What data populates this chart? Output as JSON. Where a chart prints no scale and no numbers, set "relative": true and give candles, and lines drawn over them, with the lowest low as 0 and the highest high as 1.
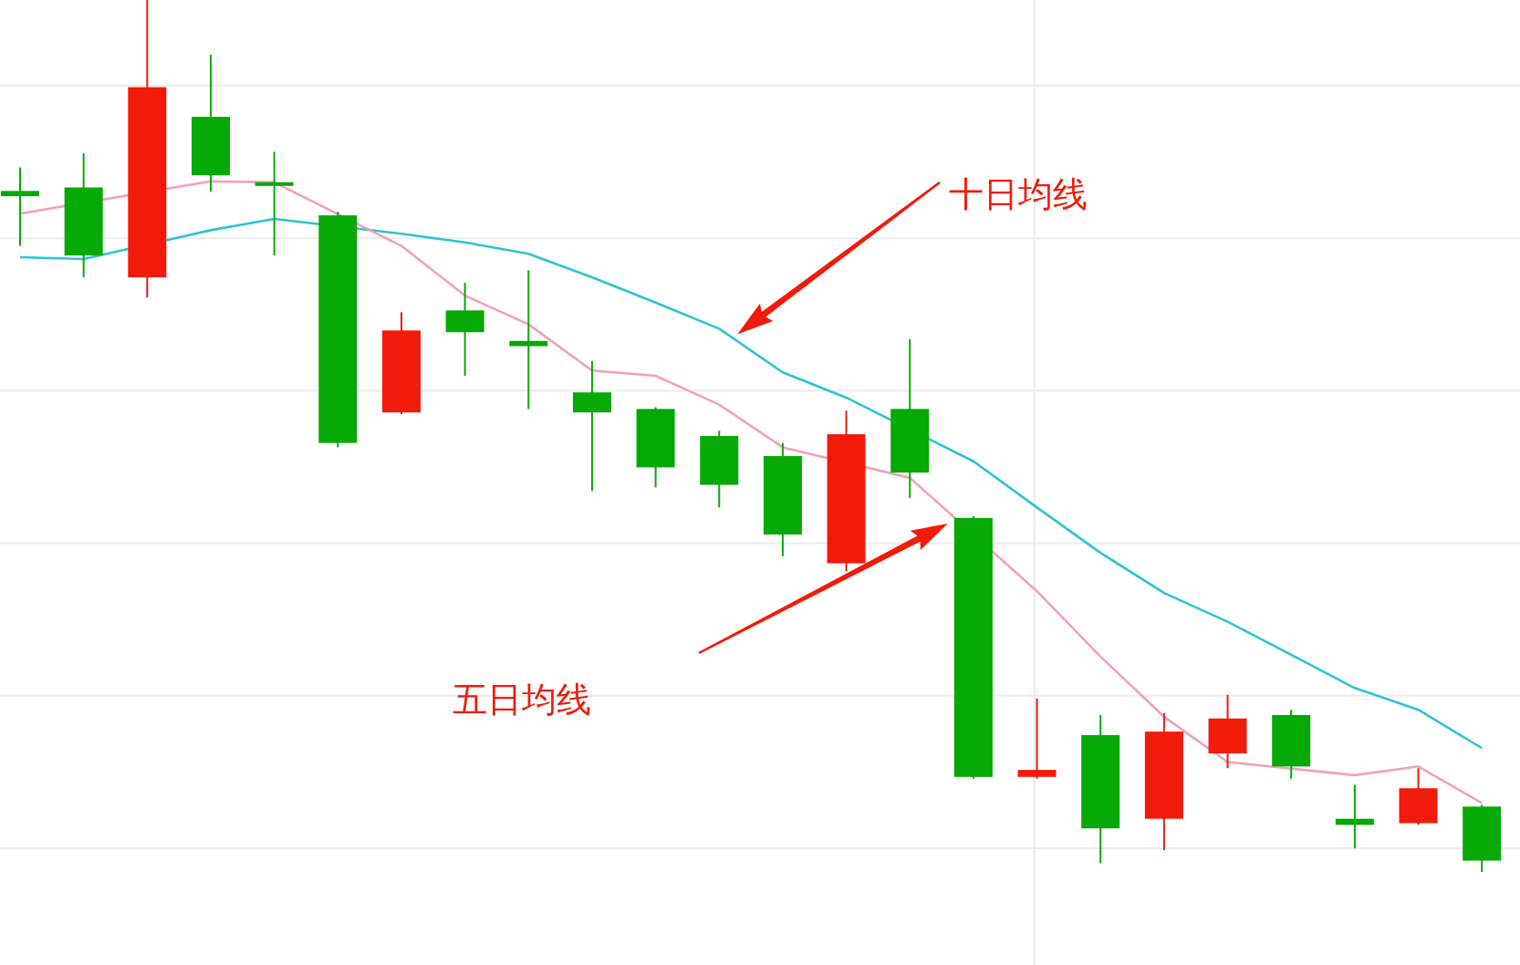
{
  "chart_data": {
    "type": "candlestick",
    "relative": true,
    "grid": true,
    "categories": [
      null,
      null,
      null,
      null,
      null,
      null,
      null,
      null,
      null,
      null,
      null,
      null,
      null,
      null,
      null,
      null,
      null,
      null,
      null,
      null,
      null,
      null,
      null,
      null
    ],
    "ohlc": [
      [
        0.781,
        0.808,
        0.718,
        0.775
      ],
      [
        0.785,
        0.824,
        0.682,
        0.707
      ],
      [
        0.682,
        1,
        0.659,
        0.9
      ],
      [
        0.866,
        0.937,
        0.78,
        0.799
      ],
      [
        0.791,
        0.826,
        0.707,
        0.787
      ],
      [
        0.753,
        0.757,
        0.487,
        0.492
      ],
      [
        0.527,
        0.642,
        0.525,
        0.621
      ],
      [
        0.644,
        0.676,
        0.569,
        0.619
      ],
      [
        0.609,
        0.69,
        0.531,
        0.603
      ],
      [
        0.55,
        0.586,
        0.437,
        0.527
      ],
      [
        0.531,
        0.533,
        0.441,
        0.464
      ],
      [
        0.5,
        0.506,
        0.418,
        0.444
      ],
      [
        0.477,
        0.492,
        0.362,
        0.387
      ],
      [
        0.354,
        0.529,
        0.345,
        0.502
      ],
      [
        0.531,
        0.611,
        0.429,
        0.458
      ],
      [
        0.406,
        0.408,
        0.107,
        0.109
      ],
      [
        0.109,
        0.199,
        0.107,
        0.117
      ],
      [
        0.157,
        0.18,
        0.01,
        0.05
      ],
      [
        0.061,
        0.182,
        0.025,
        0.161
      ],
      [
        0.136,
        0.203,
        0.119,
        0.176
      ],
      [
        0.18,
        0.186,
        0.107,
        0.121
      ],
      [
        0.061,
        0.1,
        0.027,
        0.054
      ],
      [
        0.056,
        0.119,
        0.054,
        0.096
      ],
      [
        0.075,
        0.077,
        0,
        0.013
      ]
    ],
    "colors": [
      "#06a906",
      "#06a906",
      "#f21a0a",
      "#06a906",
      "#06a906",
      "#06a906",
      "#f21a0a",
      "#06a906",
      "#06a906",
      "#06a906",
      "#06a906",
      "#06a906",
      "#06a906",
      "#f21a0a",
      "#06a906",
      "#06a906",
      "#f21a0a",
      "#06a906",
      "#f21a0a",
      "#f21a0a",
      "#06a906",
      "#06a906",
      "#f21a0a",
      "#06a906"
    ],
    "series": [
      {
        "type": "line",
        "color": "#2cc3d8",
        "values": [
          0.705,
          0.703,
          null,
          0.736,
          0.749,
          null,
          0.732,
          0.722,
          0.709,
          0.682,
          0.653,
          0.623,
          0.573,
          0.544,
          null,
          0.471,
          0.418,
          0.366,
          0.32,
          0.287,
          0.249,
          0.211,
          0.186,
          0.142
        ]
      },
      {
        "type": "line",
        "color": "#f4a0b8",
        "values": [
          0.755,
          null,
          null,
          0.792,
          0.791,
          null,
          0.718,
          0.661,
          0.628,
          0.575,
          0.569,
          0.536,
          0.487,
          null,
          0.452,
          null,
          0.322,
          0.247,
          0.178,
          0.126,
          null,
          0.111,
          0.121,
          0.079
        ]
      }
    ],
    "annotations": [
      "十日均线",
      "五日均线"
    ]
  }
}
